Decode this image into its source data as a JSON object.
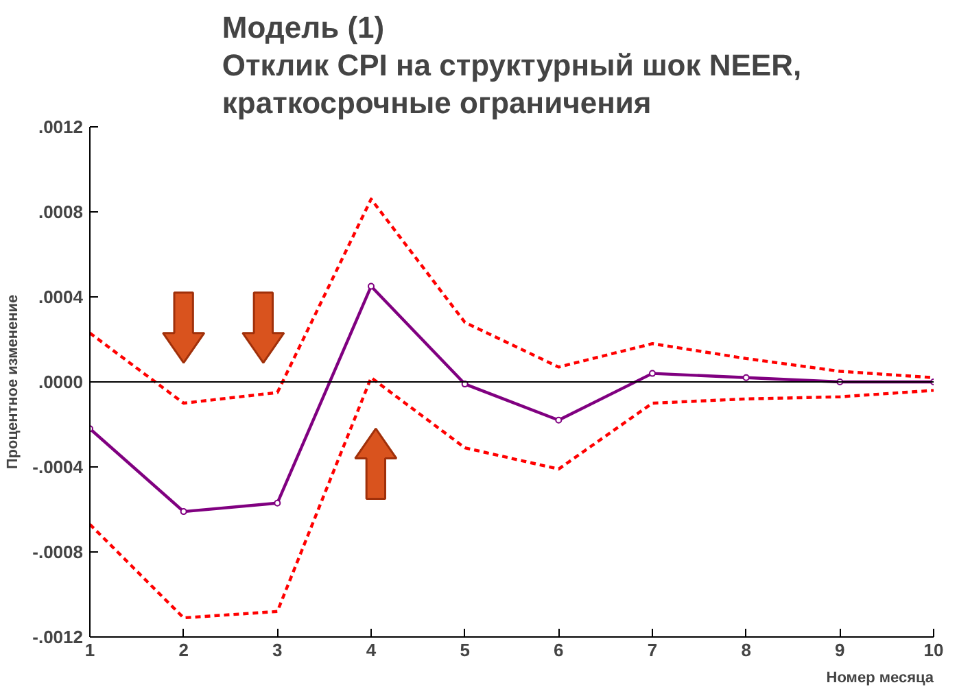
{
  "chart_data": {
    "type": "line",
    "title": "Модель (1)\nОтклик CPI на структурный шок NEER,\nкраткосрочные ограничения",
    "xlabel": "Номер месяца",
    "ylabel": "Процентное изменение",
    "x": [
      1,
      2,
      3,
      4,
      5,
      6,
      7,
      8,
      9,
      10
    ],
    "series": [
      {
        "color": "#800080",
        "marker": "circle",
        "line_style": "solid",
        "values": [
          -0.00022,
          -0.00061,
          -0.00057,
          0.00045,
          -1e-05,
          -0.00018,
          4e-05,
          2e-05,
          0,
          0
        ]
      },
      {
        "color": "#ff0000",
        "marker": "none",
        "line_style": "dashed",
        "values": [
          0.00023,
          -0.0001,
          -5e-05,
          0.00086,
          0.00028,
          7e-05,
          0.00018,
          0.00011,
          5e-05,
          2e-05
        ]
      },
      {
        "color": "#ff0000",
        "marker": "none",
        "line_style": "dashed",
        "values": [
          -0.00067,
          -0.00111,
          -0.00108,
          2e-05,
          -0.00031,
          -0.00041,
          -0.0001,
          -8e-05,
          -7e-05,
          -4e-05
        ]
      }
    ],
    "xlim": [
      1,
      10
    ],
    "xticks": [
      1,
      2,
      3,
      4,
      5,
      6,
      7,
      8,
      9,
      10
    ],
    "ylim": [
      -0.0012,
      0.0012
    ],
    "yticks": [
      {
        "value": -0.0012,
        "label": "-.0012"
      },
      {
        "value": -0.0008,
        "label": "-.0008"
      },
      {
        "value": -0.0004,
        "label": "-.0004"
      },
      {
        "value": 0,
        "label": ".0000"
      },
      {
        "value": 0.0004,
        "label": ".0004"
      },
      {
        "value": 0.0008,
        "label": ".0008"
      },
      {
        "value": 0.0012,
        "label": ".0012"
      }
    ],
    "ref_lines": [
      {
        "axis": "y",
        "value": 0,
        "color": "#000000",
        "line_style": "solid"
      }
    ],
    "grid": false
  }
}
